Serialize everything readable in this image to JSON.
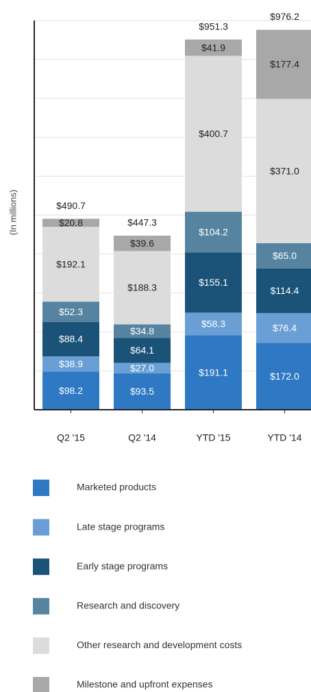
{
  "chart_data": {
    "type": "stacked_bar",
    "y_label": "(In millions)",
    "categories": [
      "Q2 '15",
      "Q2 '14",
      "YTD '15",
      "YTD '14"
    ],
    "ylim": [
      0,
      1000
    ],
    "yticks": [
      0,
      100,
      200,
      300,
      400,
      500,
      600,
      700,
      800,
      900,
      1000
    ],
    "grid": true,
    "series": [
      {
        "name": "Marketed products",
        "color": "#2e78c4",
        "values": [
          98.2,
          93.5,
          191.1,
          172.0
        ],
        "value_labels": [
          "$98.2",
          "$93.5",
          "$191.1",
          "$172.0"
        ]
      },
      {
        "name": "Late stage programs",
        "color": "#6a9fd6",
        "values": [
          38.9,
          27.0,
          58.3,
          76.4
        ],
        "value_labels": [
          "$38.9",
          "$27.0",
          "$58.3",
          "$76.4"
        ]
      },
      {
        "name": "Early stage programs",
        "color": "#1b5278",
        "values": [
          88.4,
          64.1,
          155.1,
          114.4
        ],
        "value_labels": [
          "$88.4",
          "$64.1",
          "$155.1",
          "$114.4"
        ]
      },
      {
        "name": "Research and discovery",
        "color": "#5684a0",
        "values": [
          52.3,
          34.8,
          104.2,
          65.0
        ],
        "value_labels": [
          "$52.3",
          "$34.8",
          "$104.2",
          "$65.0"
        ]
      },
      {
        "name": "Other research and development costs",
        "color": "#dcdcdc",
        "values": [
          192.1,
          188.3,
          400.7,
          371.0
        ],
        "value_labels": [
          "$192.1",
          "$188.3",
          "$400.7",
          "$371.0"
        ]
      },
      {
        "name": "Milestone and upfront expenses",
        "color": "#a8a8a8",
        "values": [
          20.8,
          39.6,
          41.9,
          177.4
        ],
        "value_labels": [
          "$20.8",
          "$39.6",
          "$41.9",
          "$177.4"
        ]
      }
    ],
    "totals": [
      490.7,
      447.3,
      951.3,
      976.2
    ],
    "total_labels": [
      "$490.7",
      "$447.3",
      "$951.3",
      "$976.2"
    ]
  }
}
